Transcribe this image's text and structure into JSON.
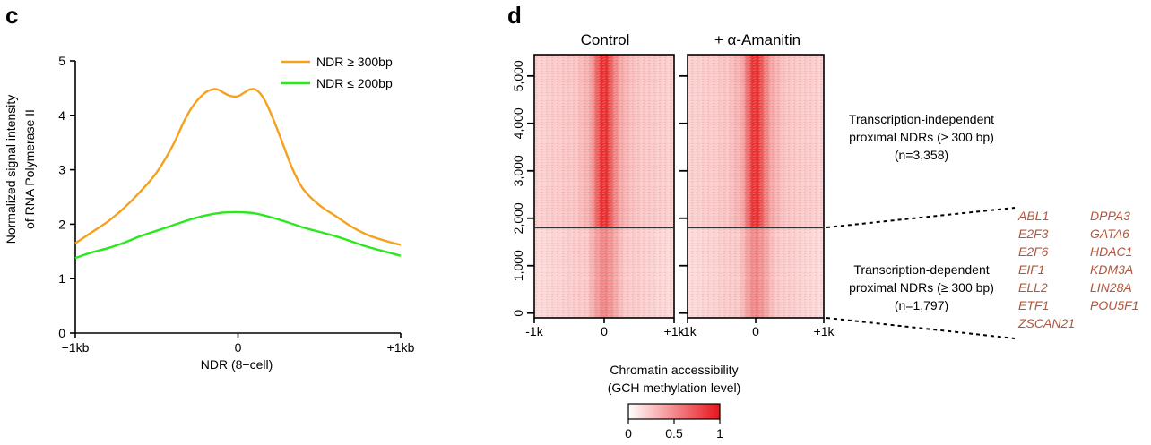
{
  "panels": {
    "c": "c",
    "d": "d"
  },
  "chart_data": [
    {
      "type": "line",
      "xlabel": "NDR (8−cell)",
      "ylabel_line1": "Normalized signal intensity",
      "ylabel_line2": "of RNA Polymerase II",
      "x_tick_labels": [
        "−1kb",
        "0",
        "+1kb"
      ],
      "x_ticks": [
        -1000,
        0,
        1000
      ],
      "xlim": [
        -1000,
        1000
      ],
      "ylim": [
        0,
        5
      ],
      "y_ticks": [
        "0",
        "1",
        "2",
        "3",
        "4",
        "5"
      ],
      "legend_position": "top-right",
      "series": [
        {
          "name": "NDR ≥ 300bp",
          "color": "#f5a11c",
          "x": [
            -1000,
            -900,
            -800,
            -700,
            -600,
            -500,
            -400,
            -330,
            -270,
            -200,
            -150,
            -120,
            -80,
            -40,
            0,
            40,
            80,
            120,
            160,
            200,
            260,
            330,
            400,
            500,
            600,
            700,
            800,
            900,
            1000
          ],
          "y": [
            1.65,
            1.85,
            2.05,
            2.3,
            2.6,
            2.95,
            3.45,
            3.9,
            4.2,
            4.42,
            4.48,
            4.47,
            4.4,
            4.35,
            4.35,
            4.42,
            4.48,
            4.45,
            4.3,
            4.05,
            3.6,
            3.05,
            2.65,
            2.35,
            2.15,
            1.95,
            1.8,
            1.7,
            1.62
          ]
        },
        {
          "name": "NDR ≤ 200bp",
          "color": "#2be81e",
          "x": [
            -1000,
            -900,
            -800,
            -700,
            -600,
            -500,
            -400,
            -300,
            -200,
            -100,
            0,
            100,
            200,
            300,
            400,
            500,
            600,
            700,
            800,
            900,
            1000
          ],
          "y": [
            1.38,
            1.48,
            1.56,
            1.66,
            1.78,
            1.88,
            1.98,
            2.08,
            2.16,
            2.21,
            2.22,
            2.2,
            2.13,
            2.04,
            1.94,
            1.86,
            1.78,
            1.68,
            1.58,
            1.5,
            1.42
          ]
        }
      ]
    },
    {
      "type": "heatmap",
      "heatmaps": [
        {
          "title": "Control"
        },
        {
          "title": "+ α-Amanitin"
        }
      ],
      "y_tick_labels": [
        "0",
        "1,000",
        "2,000",
        "3,000",
        "4,000",
        "5,000"
      ],
      "y_ticks": [
        0,
        1000,
        2000,
        3000,
        4000,
        5000
      ],
      "ylim": [
        -100,
        5450
      ],
      "x_tick_labels": [
        "-1k",
        "0",
        "+1k"
      ],
      "xlim": [
        -1000,
        1000
      ],
      "boundary_row": 1797,
      "groups": [
        {
          "line1": "Transcription-independent",
          "line2": "proximal NDRs (≥ 300 bp)",
          "line3": "(n=3,358)"
        },
        {
          "line1": "Transcription-dependent",
          "line2": "proximal NDRs (≥ 300 bp)",
          "line3": "(n=1,797)"
        }
      ],
      "genes_col1": [
        "ABL1",
        "E2F3",
        "E2F6",
        "EIF1",
        "ELL2",
        "ETF1",
        "ZSCAN21"
      ],
      "genes_col2": [
        "DPPA3",
        "GATA6",
        "HDAC1",
        "KDM3A",
        "LIN28A",
        "POU5F1"
      ],
      "colorbar": {
        "title_line1": "Chromatin accessibility",
        "title_line2": "(GCH methylation level)",
        "tick_labels": [
          "0",
          "0.5",
          "1"
        ],
        "range": [
          0,
          1
        ],
        "low_color": "#ffffff",
        "high_color": "#e8141c"
      }
    }
  ]
}
